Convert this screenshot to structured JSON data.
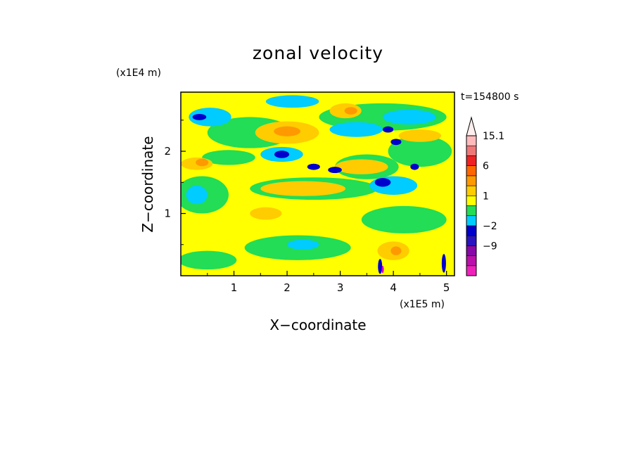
{
  "chart_data": {
    "type": "heatmap",
    "title": "zonal velocity",
    "xlabel": "X−coordinate",
    "ylabel": "Z−coordinate",
    "x_scale_note": "(x1E5 m)",
    "y_scale_note": "(x1E4 m)",
    "time_label": "t=154800 s",
    "xlim": [
      0,
      5.15
    ],
    "ylim": [
      0,
      2.95
    ],
    "x_ticks": [
      "1",
      "2",
      "3",
      "4",
      "5"
    ],
    "y_ticks": [
      "1",
      "2"
    ],
    "colorbar": {
      "levels": [
        {
          "label": "",
          "color": "#ee22bb"
        },
        {
          "label": "",
          "color": "#bb10aa"
        },
        {
          "label": "−9",
          "color": "#8808a8"
        },
        {
          "label": "",
          "color": "#2a14c0"
        },
        {
          "label": "−2",
          "color": "#0000cc"
        },
        {
          "label": "",
          "color": "#00ccff"
        },
        {
          "label": "",
          "color": "#22dd55"
        },
        {
          "label": "1",
          "color": "#ffff00"
        },
        {
          "label": "",
          "color": "#ffcc00"
        },
        {
          "label": "",
          "color": "#ff9900"
        },
        {
          "label": "6",
          "color": "#ff6600"
        },
        {
          "label": "",
          "color": "#ee2222"
        },
        {
          "label": "",
          "color": "#ee7777"
        },
        {
          "label": "15.1",
          "color": "#ffbbbb"
        }
      ],
      "overflow_color": "#ffeeee"
    },
    "field_colors": {
      "background": "#ffff00",
      "green": "#22dd55",
      "cyan": "#00ccff",
      "blue": "#0000cc",
      "orange": "#ffcc00",
      "dark_orange": "#ff9900",
      "magenta": "#cc00cc"
    },
    "regions": [
      {
        "level": "green",
        "x": 0.5,
        "z": 0.25,
        "rx": 0.55,
        "rz": 0.15
      },
      {
        "level": "green",
        "x": 2.2,
        "z": 0.45,
        "rx": 1.0,
        "rz": 0.2
      },
      {
        "level": "green",
        "x": 4.2,
        "z": 0.9,
        "rx": 0.8,
        "rz": 0.22
      },
      {
        "level": "green",
        "x": 0.4,
        "z": 1.3,
        "rx": 0.5,
        "rz": 0.3
      },
      {
        "level": "green",
        "x": 1.3,
        "z": 2.3,
        "rx": 0.8,
        "rz": 0.25
      },
      {
        "level": "green",
        "x": 2.5,
        "z": 1.4,
        "rx": 1.2,
        "rz": 0.18
      },
      {
        "level": "green",
        "x": 3.5,
        "z": 1.75,
        "rx": 0.6,
        "rz": 0.2
      },
      {
        "level": "green",
        "x": 4.5,
        "z": 2.0,
        "rx": 0.6,
        "rz": 0.25
      },
      {
        "level": "green",
        "x": 3.8,
        "z": 2.55,
        "rx": 1.2,
        "rz": 0.22
      },
      {
        "level": "green",
        "x": 0.9,
        "z": 1.9,
        "rx": 0.5,
        "rz": 0.12
      },
      {
        "level": "cyan",
        "x": 0.55,
        "z": 2.55,
        "rx": 0.4,
        "rz": 0.15
      },
      {
        "level": "cyan",
        "x": 2.1,
        "z": 2.8,
        "rx": 0.5,
        "rz": 0.1
      },
      {
        "level": "cyan",
        "x": 3.3,
        "z": 2.35,
        "rx": 0.5,
        "rz": 0.12
      },
      {
        "level": "cyan",
        "x": 4.3,
        "z": 2.55,
        "rx": 0.5,
        "rz": 0.12
      },
      {
        "level": "cyan",
        "x": 4.0,
        "z": 1.45,
        "rx": 0.45,
        "rz": 0.15
      },
      {
        "level": "cyan",
        "x": 2.3,
        "z": 0.5,
        "rx": 0.3,
        "rz": 0.08
      },
      {
        "level": "cyan",
        "x": 0.3,
        "z": 1.3,
        "rx": 0.2,
        "rz": 0.15
      },
      {
        "level": "cyan",
        "x": 1.9,
        "z": 1.95,
        "rx": 0.4,
        "rz": 0.12
      },
      {
        "level": "orange",
        "x": 2.0,
        "z": 2.3,
        "rx": 0.6,
        "rz": 0.18
      },
      {
        "level": "orange",
        "x": 2.3,
        "z": 1.4,
        "rx": 0.8,
        "rz": 0.12
      },
      {
        "level": "orange",
        "x": 3.4,
        "z": 1.75,
        "rx": 0.5,
        "rz": 0.12
      },
      {
        "level": "orange",
        "x": 4.0,
        "z": 0.4,
        "rx": 0.3,
        "rz": 0.15
      },
      {
        "level": "orange",
        "x": 0.3,
        "z": 1.8,
        "rx": 0.3,
        "rz": 0.1
      },
      {
        "level": "orange",
        "x": 4.5,
        "z": 2.25,
        "rx": 0.4,
        "rz": 0.1
      },
      {
        "level": "orange",
        "x": 3.1,
        "z": 2.65,
        "rx": 0.3,
        "rz": 0.12
      },
      {
        "level": "orange",
        "x": 1.6,
        "z": 1.0,
        "rx": 0.3,
        "rz": 0.1
      },
      {
        "level": "dark_orange",
        "x": 2.0,
        "z": 2.32,
        "rx": 0.25,
        "rz": 0.08
      },
      {
        "level": "dark_orange",
        "x": 0.4,
        "z": 1.82,
        "rx": 0.12,
        "rz": 0.06
      },
      {
        "level": "dark_orange",
        "x": 3.2,
        "z": 2.65,
        "rx": 0.12,
        "rz": 0.06
      },
      {
        "level": "dark_orange",
        "x": 4.05,
        "z": 0.4,
        "rx": 0.1,
        "rz": 0.07
      },
      {
        "level": "blue",
        "x": 0.35,
        "z": 2.55,
        "rx": 0.13,
        "rz": 0.05
      },
      {
        "level": "blue",
        "x": 1.9,
        "z": 1.95,
        "rx": 0.14,
        "rz": 0.06
      },
      {
        "level": "blue",
        "x": 2.5,
        "z": 1.75,
        "rx": 0.12,
        "rz": 0.05
      },
      {
        "level": "blue",
        "x": 2.9,
        "z": 1.7,
        "rx": 0.13,
        "rz": 0.05
      },
      {
        "level": "blue",
        "x": 3.8,
        "z": 1.5,
        "rx": 0.15,
        "rz": 0.07
      },
      {
        "level": "blue",
        "x": 3.9,
        "z": 2.35,
        "rx": 0.1,
        "rz": 0.05
      },
      {
        "level": "blue",
        "x": 4.05,
        "z": 2.15,
        "rx": 0.1,
        "rz": 0.05
      },
      {
        "level": "blue",
        "x": 4.4,
        "z": 1.75,
        "rx": 0.08,
        "rz": 0.05
      },
      {
        "level": "blue",
        "x": 3.75,
        "z": 0.15,
        "rx": 0.04,
        "rz": 0.12
      },
      {
        "level": "blue",
        "x": 4.95,
        "z": 0.2,
        "rx": 0.04,
        "rz": 0.15
      },
      {
        "level": "magenta",
        "x": 3.8,
        "z": 0.1,
        "rx": 0.02,
        "rz": 0.06
      }
    ]
  }
}
